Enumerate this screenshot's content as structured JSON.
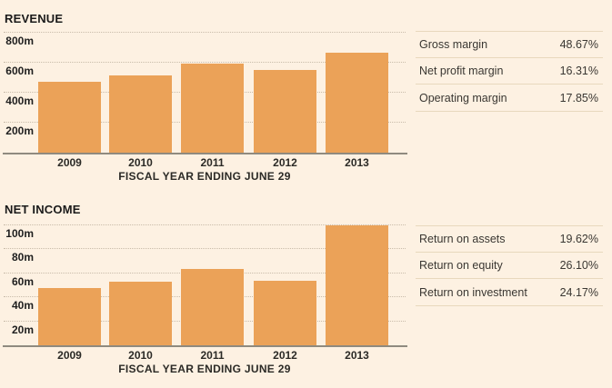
{
  "colors": {
    "background": "#fdf1e2",
    "bar": "#eba258",
    "gridline": "#c9bcaa",
    "baseline": "#8f8a7f",
    "table_rule": "#e8d8bd"
  },
  "chart_data": [
    {
      "type": "bar",
      "title": "REVENUE",
      "xlabel": "FISCAL YEAR ENDING JUNE 29",
      "ylabel": "",
      "categories": [
        "2009",
        "2010",
        "2011",
        "2012",
        "2013"
      ],
      "values": [
        475,
        515,
        595,
        550,
        665
      ],
      "unit": "m",
      "ytick_labels": [
        "200m",
        "400m",
        "600m",
        "800m"
      ],
      "ylim": [
        0,
        836
      ],
      "grid": "horizontal-dotted",
      "legend": "none",
      "bar_color": "#eba258"
    },
    {
      "type": "bar",
      "title": "NET INCOME",
      "xlabel": "FISCAL YEAR ENDING JUNE 29",
      "ylabel": "",
      "categories": [
        "2009",
        "2010",
        "2011",
        "2012",
        "2013"
      ],
      "values": [
        48,
        53,
        64,
        54,
        100
      ],
      "unit": "m",
      "ytick_labels": [
        "20m",
        "40m",
        "60m",
        "80m",
        "100m"
      ],
      "ylim": [
        0,
        104.5
      ],
      "grid": "horizontal-dotted",
      "legend": "none",
      "bar_color": "#eba258"
    },
    {
      "type": "table",
      "rows": [
        {
          "label": "Gross margin",
          "value": "48.67%"
        },
        {
          "label": "Net profit margin",
          "value": "16.31%"
        },
        {
          "label": "Operating margin",
          "value": "17.85%"
        }
      ]
    },
    {
      "type": "table",
      "rows": [
        {
          "label": "Return on assets",
          "value": "19.62%"
        },
        {
          "label": "Return on equity",
          "value": "26.10%"
        },
        {
          "label": "Return on investment",
          "value": "24.17%"
        }
      ]
    }
  ]
}
